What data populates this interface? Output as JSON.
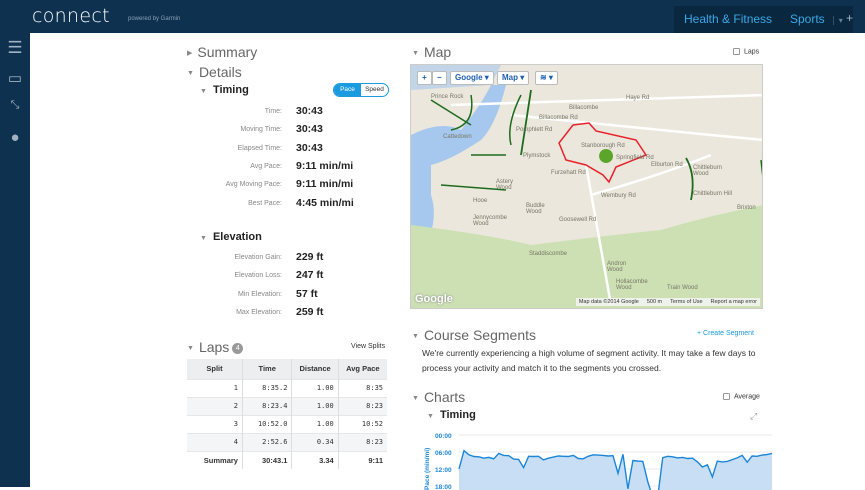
{
  "header": {
    "logo": "connect",
    "powered": "powered by Garmin",
    "nav": [
      {
        "label": "Health & Fitness"
      },
      {
        "label": "Sports"
      }
    ],
    "add": "+"
  },
  "sidebar": {
    "icons": [
      "menu-icon",
      "inbox-icon",
      "connections-icon",
      "user-icon"
    ]
  },
  "sections": {
    "summary": "Summary",
    "details": "Details"
  },
  "timing": {
    "title": "Timing",
    "toggle": [
      "Pace",
      "Speed"
    ],
    "active": "Pace",
    "rows": [
      {
        "label": "Time:",
        "value": "30:43"
      },
      {
        "label": "Moving Time:",
        "value": "30:43"
      },
      {
        "label": "Elapsed Time:",
        "value": "30:43"
      },
      {
        "label": "Avg Pace:",
        "value": "9:11 min/mi"
      },
      {
        "label": "Avg Moving Pace:",
        "value": "9:11 min/mi"
      },
      {
        "label": "Best Pace:",
        "value": "4:45 min/mi"
      }
    ]
  },
  "elevation": {
    "title": "Elevation",
    "rows": [
      {
        "label": "Elevation Gain:",
        "value": "229 ft"
      },
      {
        "label": "Elevation Loss:",
        "value": "247 ft"
      },
      {
        "label": "Min Elevation:",
        "value": "57 ft"
      },
      {
        "label": "Max Elevation:",
        "value": "259 ft"
      }
    ]
  },
  "laps": {
    "title": "Laps",
    "count": "4",
    "view_splits": "View Splits",
    "columns": [
      "Split",
      "Time",
      "Distance",
      "Avg Pace"
    ],
    "rows": [
      [
        "1",
        "8:35.2",
        "1.00",
        "8:35"
      ],
      [
        "2",
        "8:23.4",
        "1.00",
        "8:23"
      ],
      [
        "3",
        "10:52.0",
        "1.00",
        "10:52"
      ],
      [
        "4",
        "2:52.6",
        "0.34",
        "8:23"
      ]
    ],
    "summary": [
      "Summary",
      "30:43.1",
      "3.34",
      "9:11"
    ]
  },
  "map": {
    "title": "Map",
    "laps_label": "Laps",
    "zoom_in": "+",
    "zoom_out": "−",
    "provider": "Google",
    "type": "Map",
    "labels": [
      "Prince Rock",
      "Cattedown",
      "Billacombe",
      "Plymstock",
      "Stanborough Rd",
      "Pomphlett Rd",
      "Billacombe Rd",
      "Furzehatt Rd",
      "Elburton Rd",
      "Chittleburn Wood",
      "Hooe",
      "Astery Wood",
      "Buddle Wood",
      "Jennycombe Wood",
      "Goosewell Rd",
      "Wembury Rd",
      "Staddiscombe",
      "Andron Wood",
      "Hollacombe Wood",
      "Train Wood",
      "Brixton",
      "Chittleburn Hill",
      "Springfield Rd",
      "Haye Rd"
    ],
    "logo": "Google",
    "attribution": "Map data ©2014 Google",
    "scale": "500 m",
    "terms": "Terms of Use",
    "report": "Report a map error"
  },
  "segments": {
    "title": "Course Segments",
    "create": "+ Create Segment",
    "message": "We're currently experiencing a high volume of segment activity. It may take a few days to process your activity and match it to the segments you crossed."
  },
  "charts": {
    "title": "Charts",
    "average_label": "Average",
    "timing_title": "Timing",
    "expand": "expand-icon"
  },
  "chart_data": {
    "type": "area",
    "ylabel": "Pace (min/mi)",
    "y_ticks": [
      "00:00",
      "06:00",
      "12:00",
      "18:00"
    ],
    "y_reversed": true,
    "color": "#1a86d8",
    "fill": "#c8def5",
    "values": [
      12,
      5.5,
      7,
      7.6,
      7.7,
      8.2,
      7.9,
      8.4,
      6.5,
      7.2,
      7.3,
      8.5,
      8.6,
      11.5,
      7.5,
      7.6,
      7.5,
      8.8,
      8.2,
      7.8,
      7.4,
      7.5,
      7.6,
      7.2,
      8.3,
      8.4,
      7.5,
      7,
      7.1,
      7.2,
      7.4,
      7.3,
      13.5,
      6.8,
      19,
      9,
      9.2,
      9.3,
      16.5,
      22,
      22,
      8,
      7.5,
      7.7,
      8.1,
      7.9,
      8.3,
      8.2,
      9.5,
      11.3,
      10.5,
      14.8,
      9.2,
      9.5,
      9.3,
      8.7,
      8.1,
      7.2,
      9.6,
      7.4,
      7.5,
      7.1,
      6.9,
      6.5
    ]
  },
  "colors": {
    "header": "#0e3150",
    "accent": "#1a9be0",
    "route": "#e8202a"
  }
}
